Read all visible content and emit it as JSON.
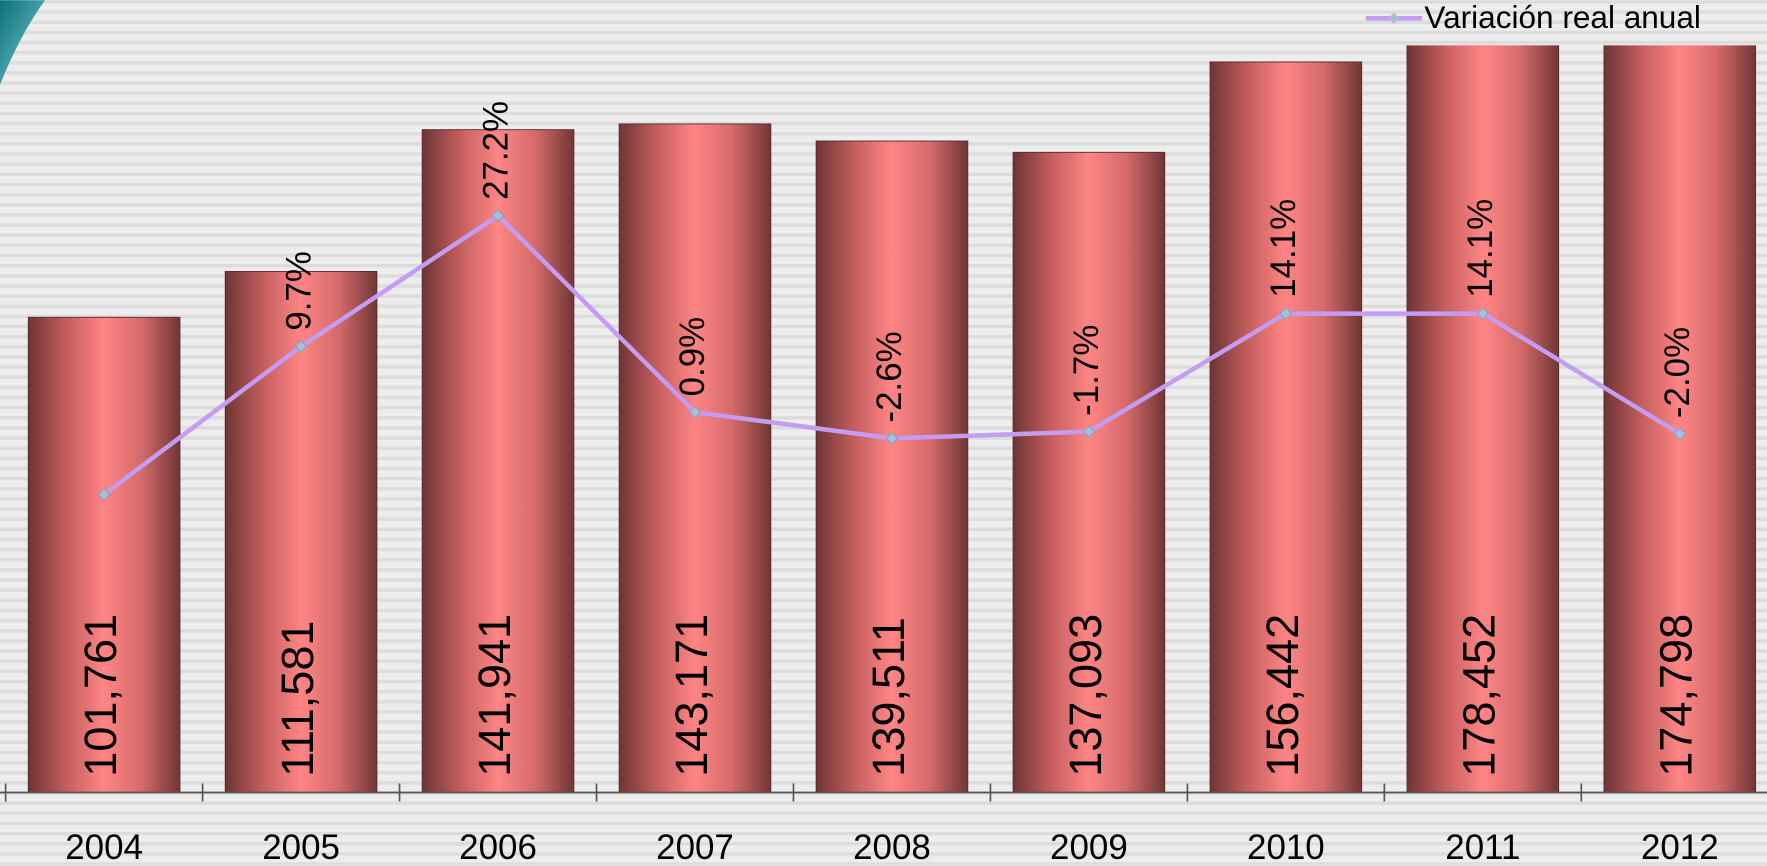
{
  "chart_data": {
    "type": "bar",
    "categories": [
      "2004",
      "2005",
      "2006",
      "2007",
      "2008",
      "2009",
      "2010",
      "2011",
      "2012"
    ],
    "series": [
      {
        "type": "bar",
        "color": "#f47c7c",
        "values": [
          101761,
          111581,
          141941,
          143171,
          139511,
          137093,
          156442,
          178452,
          174798
        ],
        "value_labels": [
          "101,761",
          "111,581",
          "141,941",
          "143,171",
          "139,511",
          "137,093",
          "156,442",
          "178,452",
          "174,798"
        ]
      },
      {
        "type": "line",
        "name": "Variación real anual",
        "axis": "y2",
        "color": "#c49cf0",
        "marker_color": "#a9c0da",
        "values": [
          -10.1,
          9.7,
          27.2,
          0.9,
          -2.6,
          -1.7,
          14.1,
          14.1,
          -2.0
        ],
        "value_labels": [
          null,
          "9.7%",
          "27.2%",
          "0.9%",
          "-2.6%",
          "-1.7%",
          "14.1%",
          "14.1%",
          "-2.0%"
        ]
      }
    ],
    "ylim": [
      0,
      160000
    ],
    "y2lim": [
      -50,
      50
    ],
    "legend": "top-right"
  }
}
